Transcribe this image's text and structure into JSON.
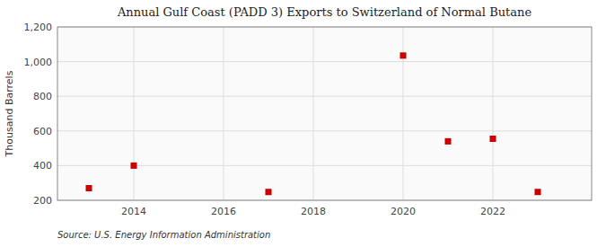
{
  "chart_data": {
    "type": "scatter",
    "title": "Annual Gulf Coast (PADD 3) Exports to Switzerland of Normal Butane",
    "ylabel": "Thousand Barrels",
    "source": "Source: U.S. Energy Information Administration",
    "x": [
      2013,
      2014,
      2017,
      2020,
      2021,
      2022,
      2023
    ],
    "values": [
      270,
      400,
      248,
      1035,
      540,
      555,
      248
    ],
    "color": "#cc0000",
    "marker": "square",
    "xlim": [
      2012.3,
      2024.2
    ],
    "xticks": [
      2014,
      2016,
      2018,
      2020,
      2022
    ],
    "ylim": [
      200,
      1200
    ],
    "yticks": [
      200,
      400,
      600,
      800,
      {
        "value": 1000,
        "label": "1,000"
      },
      {
        "value": 1200,
        "label": "1,200"
      }
    ],
    "grid": true
  }
}
